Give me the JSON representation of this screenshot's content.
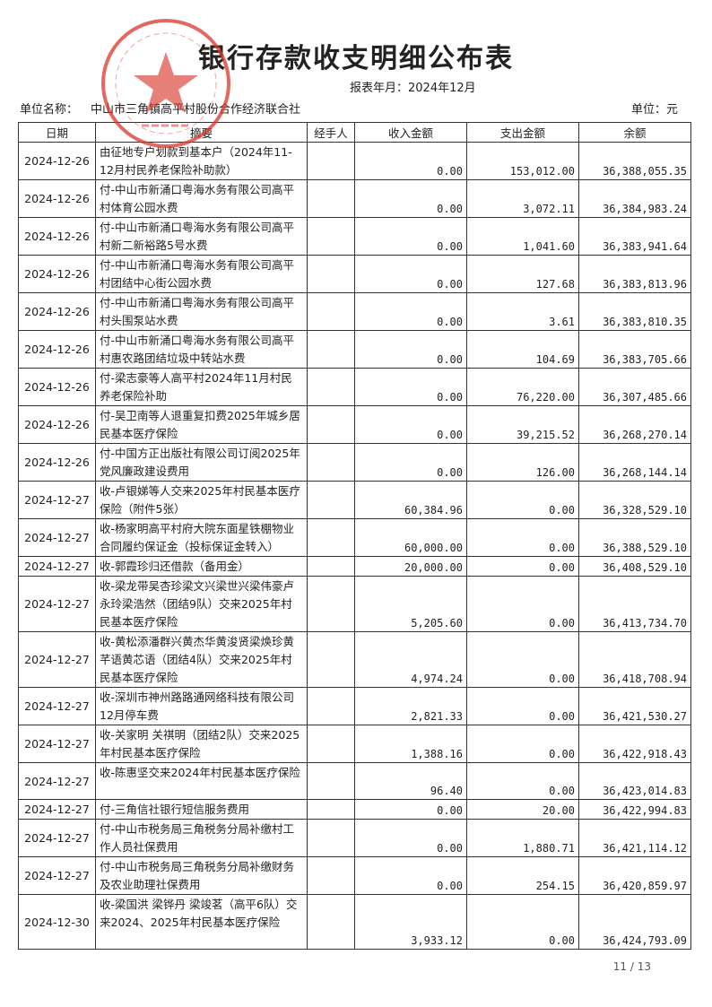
{
  "title": "银行存款收支明细公布表",
  "period": "报表年月：2024年12月",
  "unit_name_label": "单位名称：",
  "unit_name": "中山市三角镇高平村股份合作经济联合社",
  "unit": "单位：元",
  "seal_text": "中山市三角镇高平村股份合作经济联合社",
  "seal_color": "#d9382e",
  "columns": [
    "日期",
    "摘要",
    "经手人",
    "收入金额",
    "支出金额",
    "余额"
  ],
  "rows": [
    {
      "date": "2024-12-26",
      "summary": "由征地专户划款到基本户（2024年11-12月村民养老保险补助款）",
      "handler": "",
      "income": "0.00",
      "expense": "153,012.00",
      "balance": "36,388,055.35"
    },
    {
      "date": "2024-12-26",
      "summary": "付-中山市新涌口粤海水务有限公司高平村体育公园水费",
      "handler": "",
      "income": "0.00",
      "expense": "3,072.11",
      "balance": "36,384,983.24"
    },
    {
      "date": "2024-12-26",
      "summary": "付-中山市新涌口粤海水务有限公司高平村新二新裕路5号水费",
      "handler": "",
      "income": "0.00",
      "expense": "1,041.60",
      "balance": "36,383,941.64"
    },
    {
      "date": "2024-12-26",
      "summary": "付-中山市新涌口粤海水务有限公司高平村团结中心街公园水费",
      "handler": "",
      "income": "0.00",
      "expense": "127.68",
      "balance": "36,383,813.96"
    },
    {
      "date": "2024-12-26",
      "summary": "付-中山市新涌口粤海水务有限公司高平村头围泵站水费",
      "handler": "",
      "income": "0.00",
      "expense": "3.61",
      "balance": "36,383,810.35"
    },
    {
      "date": "2024-12-26",
      "summary": "付-中山市新涌口粤海水务有限公司高平村惠农路团结垃圾中转站水费",
      "handler": "",
      "income": "0.00",
      "expense": "104.69",
      "balance": "36,383,705.66"
    },
    {
      "date": "2024-12-26",
      "summary": "付-梁志豪等人高平村2024年11月村民养老保险补助",
      "handler": "",
      "income": "0.00",
      "expense": "76,220.00",
      "balance": "36,307,485.66"
    },
    {
      "date": "2024-12-26",
      "summary": "付-吴卫南等人退重复扣费2025年城乡居民基本医疗保险",
      "handler": "",
      "income": "0.00",
      "expense": "39,215.52",
      "balance": "36,268,270.14"
    },
    {
      "date": "2024-12-26",
      "summary": "付-中国方正出版社有限公司订阅2025年党风廉政建设费用",
      "handler": "",
      "income": "0.00",
      "expense": "126.00",
      "balance": "36,268,144.14"
    },
    {
      "date": "2024-12-27",
      "summary": "收-卢银娣等人交来2025年村民基本医疗保险（附件5张）",
      "handler": "",
      "income": "60,384.96",
      "expense": "0.00",
      "balance": "36,328,529.10"
    },
    {
      "date": "2024-12-27",
      "summary": "收-杨家明高平村府大院东面星铁棚物业合同履约保证金（投标保证金转入）",
      "handler": "",
      "income": "60,000.00",
      "expense": "0.00",
      "balance": "36,388,529.10"
    },
    {
      "date": "2024-12-27",
      "summary": "收-郭霞珍归还借款（备用金）",
      "handler": "",
      "income": "20,000.00",
      "expense": "0.00",
      "balance": "36,408,529.10"
    },
    {
      "date": "2024-12-27",
      "summary": "收-梁龙带吴杏珍梁文兴梁世兴梁伟豪卢永玲梁浩然（团结9队）交来2025年村民基本医疗保险",
      "handler": "",
      "income": "5,205.60",
      "expense": "0.00",
      "balance": "36,413,734.70"
    },
    {
      "date": "2024-12-27",
      "summary": "收-黄松添潘群兴黄杰华黄浚贤梁焕珍黄芊语黄芯语（团结4队）交来2025年村民基本医疗保险",
      "handler": "",
      "income": "4,974.24",
      "expense": "0.00",
      "balance": "36,418,708.94"
    },
    {
      "date": "2024-12-27",
      "summary": "收-深圳市神州路路通网络科技有限公司12月停车费",
      "handler": "",
      "income": "2,821.33",
      "expense": "0.00",
      "balance": "36,421,530.27"
    },
    {
      "date": "2024-12-27",
      "summary": "收-关家明 关祺明（团结2队）交来2025年村民基本医疗保险",
      "handler": "",
      "income": "1,388.16",
      "expense": "0.00",
      "balance": "36,422,918.43"
    },
    {
      "date": "2024-12-27",
      "summary": "收-陈惠坚交来2024年村民基本医疗保险",
      "handler": "",
      "income": "96.40",
      "expense": "0.00",
      "balance": "36,423,014.83"
    },
    {
      "date": "2024-12-27",
      "summary": "付-三角信社银行短信服务费用",
      "handler": "",
      "income": "0.00",
      "expense": "20.00",
      "balance": "36,422,994.83"
    },
    {
      "date": "2024-12-27",
      "summary": "付-中山市税务局三角税务分局补缴村工作人员社保费用",
      "handler": "",
      "income": "0.00",
      "expense": "1,880.71",
      "balance": "36,421,114.12"
    },
    {
      "date": "2024-12-27",
      "summary": "付-中山市税务局三角税务分局补缴财务及农业助理社保费用",
      "handler": "",
      "income": "0.00",
      "expense": "254.15",
      "balance": "36,420,859.97"
    },
    {
      "date": "2024-12-30",
      "summary": "收-梁国洪 梁铧丹 梁竣茗（高平6队）交来2024、2025年村民基本医疗保险",
      "handler": "",
      "income": "3,933.12",
      "expense": "0.00",
      "balance": "36,424,793.09"
    }
  ],
  "page": "11 / 13"
}
